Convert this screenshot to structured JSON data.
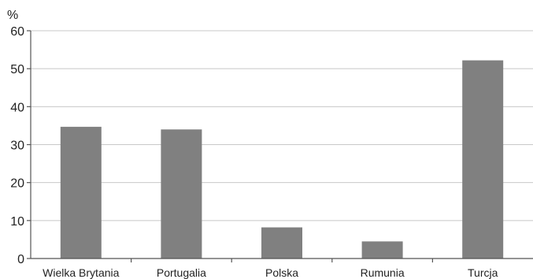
{
  "chart_data": {
    "type": "bar",
    "title": "",
    "xlabel": "",
    "ylabel": "%",
    "categories": [
      "Wielka Brytania",
      "Portugalia",
      "Polska",
      "Rumunia",
      "Turcja"
    ],
    "values": [
      34.7,
      34.0,
      8.2,
      4.5,
      52.2
    ],
    "ylim": [
      0,
      60
    ],
    "yticks": [
      0,
      10,
      20,
      30,
      40,
      50,
      60
    ],
    "grid": true,
    "legend": "none",
    "bar_color": "#808080"
  }
}
